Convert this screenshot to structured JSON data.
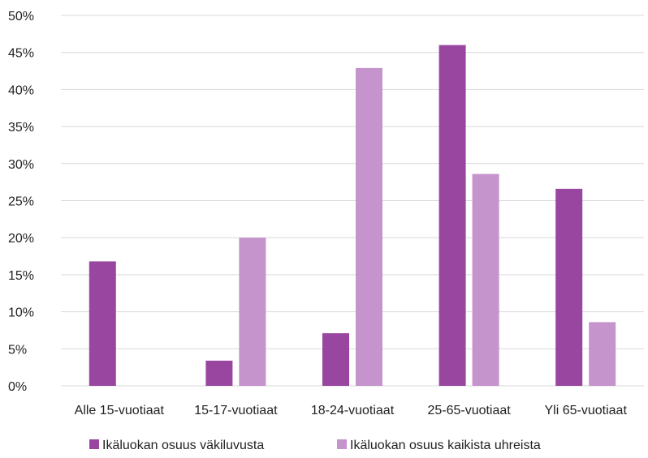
{
  "chart_data": {
    "type": "bar",
    "categories": [
      "Alle 15-vuotiaat",
      "15-17-vuotiaat",
      "18-24-vuotiaat",
      "25-65-vuotiaat",
      "Yli 65-vuotiaat"
    ],
    "series": [
      {
        "name": "Ikäluokan osuus väkiluvusta",
        "values": [
          16.8,
          3.4,
          7.1,
          46.0,
          26.6
        ],
        "color": "#9946a1"
      },
      {
        "name": "Ikäluokan osuus kaikista uhreista",
        "values": [
          0,
          20.0,
          42.9,
          28.6,
          8.6
        ],
        "color": "#c594cc"
      }
    ],
    "yticks": [
      "0%",
      "5%",
      "10%",
      "15%",
      "20%",
      "25%",
      "30%",
      "35%",
      "40%",
      "45%",
      "50%"
    ],
    "ylim": [
      0,
      50
    ],
    "grid": true,
    "gridcolor": "#d9d9d9",
    "legend_position": "bottom"
  }
}
